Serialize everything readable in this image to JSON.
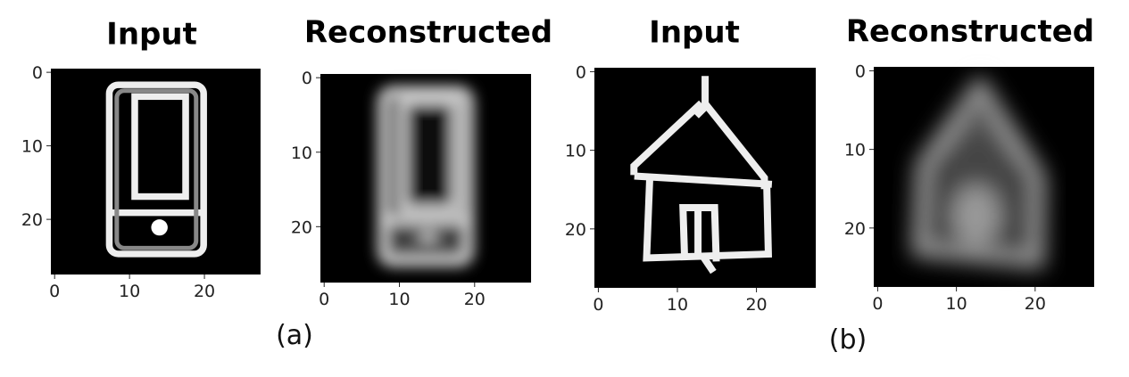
{
  "panels": [
    {
      "title": "Input",
      "xticks": [
        0,
        10,
        20
      ],
      "yticks": [
        0,
        10,
        20
      ]
    },
    {
      "title": "Reconstructed",
      "xticks": [
        0,
        10,
        20
      ],
      "yticks": [
        0,
        10,
        20
      ]
    },
    {
      "title": "Input",
      "xticks": [
        0,
        10,
        20
      ],
      "yticks": [
        0,
        10,
        20
      ]
    },
    {
      "title": "Reconstructed",
      "xticks": [
        0,
        10,
        20
      ],
      "yticks": [
        0,
        10,
        20
      ]
    }
  ],
  "captions": [
    "(a)",
    "(b)"
  ]
}
